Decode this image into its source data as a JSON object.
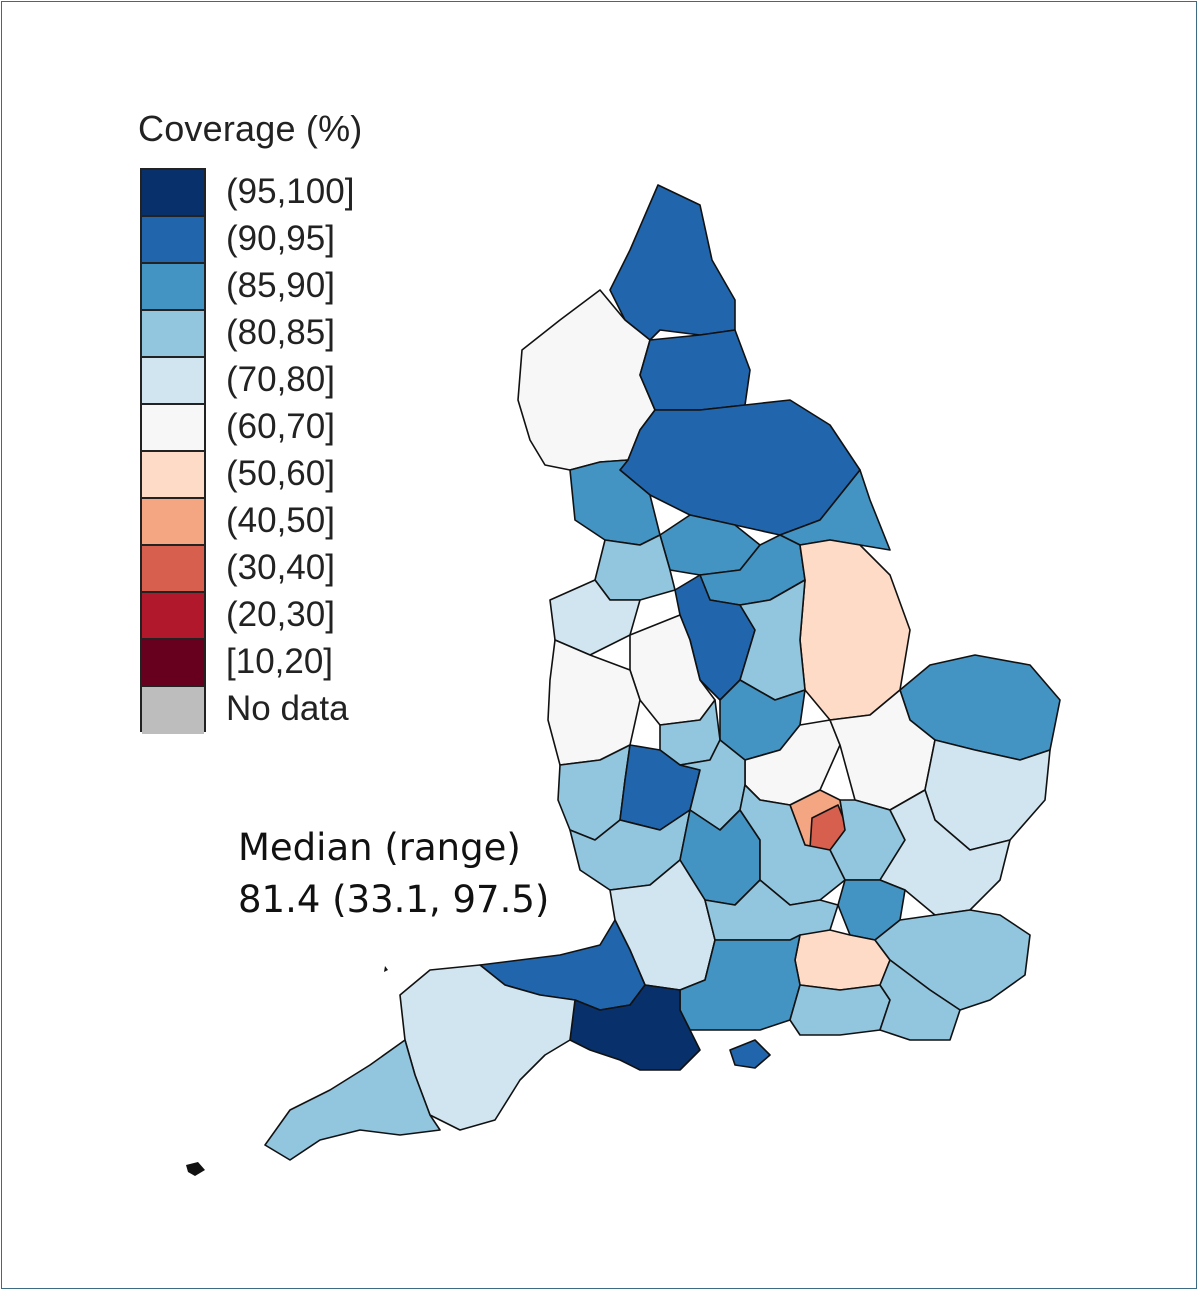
{
  "legend": {
    "title": "Coverage (%)",
    "classes": [
      {
        "label": "(95,100]",
        "color": "#08306b"
      },
      {
        "label": "(90,95]",
        "color": "#2166ac"
      },
      {
        "label": "(85,90]",
        "color": "#4393c3"
      },
      {
        "label": "(80,85]",
        "color": "#92c5de"
      },
      {
        "label": "(70,80]",
        "color": "#d1e5f0"
      },
      {
        "label": "(60,70]",
        "color": "#f7f7f7"
      },
      {
        "label": "(50,60]",
        "color": "#fddbc7"
      },
      {
        "label": "(40,50]",
        "color": "#f4a582"
      },
      {
        "label": "(30,40]",
        "color": "#d6604d"
      },
      {
        "label": "(20,30]",
        "color": "#b2182b"
      },
      {
        "label": "[10,20]",
        "color": "#67001f"
      },
      {
        "label": "No data",
        "color": "#bdbdbd"
      }
    ]
  },
  "stats": {
    "label": "Median (range)",
    "value": "81.4 (33.1, 97.5)"
  },
  "map": {
    "regions": [
      {
        "name": "northumberland",
        "color": "#2166ac"
      },
      {
        "name": "cumbria",
        "color": "#f7f7f7"
      },
      {
        "name": "durham",
        "color": "#2166ac"
      },
      {
        "name": "north-yorkshire",
        "color": "#2166ac"
      },
      {
        "name": "east-riding",
        "color": "#4393c3"
      },
      {
        "name": "lancashire",
        "color": "#4393c3"
      },
      {
        "name": "west-yorkshire",
        "color": "#4393c3"
      },
      {
        "name": "south-yorkshire",
        "color": "#4393c3"
      },
      {
        "name": "lincolnshire",
        "color": "#fddbc7"
      },
      {
        "name": "greater-manchester",
        "color": "#92c5de"
      },
      {
        "name": "cheshire",
        "color": "#d1e5f0"
      },
      {
        "name": "derbyshire",
        "color": "#2166ac"
      },
      {
        "name": "nottinghamshire",
        "color": "#92c5de"
      },
      {
        "name": "staffordshire",
        "color": "#f7f7f7"
      },
      {
        "name": "shropshire",
        "color": "#f7f7f7"
      },
      {
        "name": "leicestershire",
        "color": "#4393c3"
      },
      {
        "name": "norfolk",
        "color": "#4393c3"
      },
      {
        "name": "west-midlands",
        "color": "#92c5de"
      },
      {
        "name": "northamptonshire",
        "color": "#f7f7f7"
      },
      {
        "name": "cambridgeshire",
        "color": "#f7f7f7"
      },
      {
        "name": "suffolk",
        "color": "#d1e5f0"
      },
      {
        "name": "herefordshire",
        "color": "#92c5de"
      },
      {
        "name": "worcestershire",
        "color": "#2166ac"
      },
      {
        "name": "warwickshire",
        "color": "#92c5de"
      },
      {
        "name": "bedfordshire",
        "color": "#f4a582"
      },
      {
        "name": "luton",
        "color": "#d6604d"
      },
      {
        "name": "hertfordshire",
        "color": "#92c5de"
      },
      {
        "name": "essex",
        "color": "#d1e5f0"
      },
      {
        "name": "gloucestershire",
        "color": "#92c5de"
      },
      {
        "name": "oxfordshire",
        "color": "#4393c3"
      },
      {
        "name": "buckinghamshire",
        "color": "#92c5de"
      },
      {
        "name": "london",
        "color": "#4393c3"
      },
      {
        "name": "wiltshire",
        "color": "#d1e5f0"
      },
      {
        "name": "berkshire",
        "color": "#92c5de"
      },
      {
        "name": "surrey",
        "color": "#fddbc7"
      },
      {
        "name": "kent",
        "color": "#92c5de"
      },
      {
        "name": "somerset",
        "color": "#2166ac"
      },
      {
        "name": "hampshire",
        "color": "#4393c3"
      },
      {
        "name": "west-sussex",
        "color": "#92c5de"
      },
      {
        "name": "east-sussex",
        "color": "#92c5de"
      },
      {
        "name": "dorset",
        "color": "#08306b"
      },
      {
        "name": "devon",
        "color": "#d1e5f0"
      },
      {
        "name": "cornwall",
        "color": "#92c5de"
      },
      {
        "name": "isle-of-wight",
        "color": "#2166ac"
      }
    ]
  }
}
